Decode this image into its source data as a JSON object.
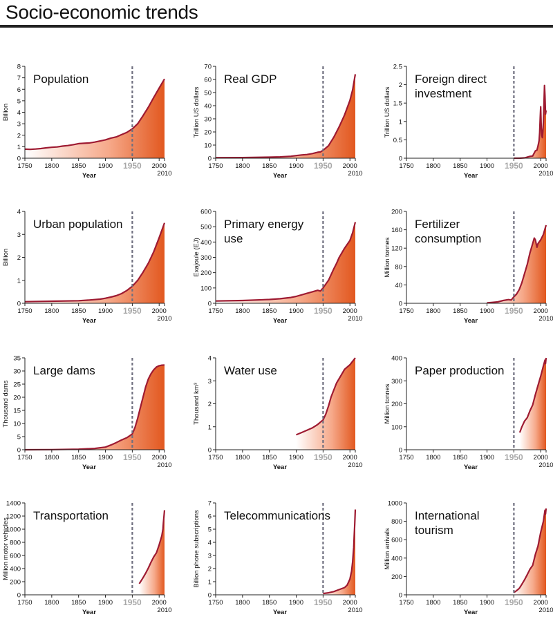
{
  "page": {
    "title": "Socio-economic trends"
  },
  "chart_data": [
    {
      "type": "area",
      "title": "Population",
      "ylabel": "Billion",
      "xlabel": "Year",
      "ylim": [
        0,
        8
      ],
      "yticks": [
        0,
        1,
        2,
        3,
        4,
        5,
        6,
        7,
        8
      ],
      "xticks": [
        "1750",
        "1800",
        "1850",
        "1900",
        "1950",
        "2000"
      ],
      "xlim": [
        1750,
        2010
      ],
      "marker_year_label": "1950",
      "end_year_label": "2010",
      "x": [
        1750,
        1760,
        1770,
        1780,
        1790,
        1800,
        1810,
        1820,
        1830,
        1840,
        1850,
        1860,
        1870,
        1880,
        1890,
        1900,
        1910,
        1920,
        1930,
        1940,
        1950,
        1960,
        1970,
        1980,
        1990,
        2000,
        2010
      ],
      "y": [
        0.79,
        0.77,
        0.8,
        0.84,
        0.9,
        0.95,
        0.98,
        1.05,
        1.1,
        1.18,
        1.27,
        1.3,
        1.33,
        1.4,
        1.5,
        1.6,
        1.75,
        1.85,
        2.05,
        2.25,
        2.55,
        3.0,
        3.7,
        4.45,
        5.3,
        6.1,
        6.9
      ]
    },
    {
      "type": "area",
      "title": "Real GDP",
      "ylabel": "Trillion US dollars",
      "xlabel": "Year",
      "ylim": [
        0,
        70
      ],
      "yticks": [
        0,
        10,
        20,
        30,
        40,
        50,
        60,
        70
      ],
      "xticks": [
        "1750",
        "1800",
        "1850",
        "1900",
        "1950",
        "2000"
      ],
      "xlim": [
        1750,
        2010
      ],
      "marker_year_label": "1950",
      "end_year_label": "2010",
      "x": [
        1750,
        1800,
        1850,
        1870,
        1890,
        1900,
        1910,
        1920,
        1930,
        1940,
        1945,
        1950,
        1960,
        1970,
        1980,
        1990,
        2000,
        2005,
        2010
      ],
      "y": [
        0.4,
        0.5,
        0.8,
        1.0,
        1.5,
        2.0,
        2.5,
        2.8,
        3.5,
        4.5,
        4.8,
        6.0,
        9.5,
        16,
        24,
        33,
        44,
        52,
        64
      ]
    },
    {
      "type": "area",
      "title": "Foreign direct investment",
      "ylabel": "Trillion US dollars",
      "xlabel": "Year",
      "ylim": [
        0,
        2.5
      ],
      "yticks": [
        0,
        0.5,
        1,
        1.5,
        2,
        2.5
      ],
      "xticks": [
        "1750",
        "1800",
        "1850",
        "1900",
        "1950",
        "2000"
      ],
      "xlim": [
        1750,
        2010
      ],
      "marker_year_label": "1950",
      "end_year_label": "2010",
      "x": [
        1950,
        1960,
        1970,
        1980,
        1985,
        1990,
        1993,
        1995,
        1997,
        1998,
        1999,
        2000,
        2001,
        2002,
        2003,
        2004,
        2005,
        2006,
        2007,
        2008,
        2009,
        2010
      ],
      "y": [
        0,
        0,
        0.01,
        0.05,
        0.06,
        0.2,
        0.22,
        0.33,
        0.48,
        0.7,
        1.1,
        1.4,
        0.83,
        0.62,
        0.56,
        0.72,
        0.98,
        1.45,
        1.98,
        1.7,
        1.2,
        1.3
      ]
    },
    {
      "type": "area",
      "title": "Urban population",
      "ylabel": "Billion",
      "xlabel": "Year",
      "ylim": [
        0,
        4
      ],
      "yticks": [
        0,
        1,
        2,
        3,
        4
      ],
      "xticks": [
        "1750",
        "1800",
        "1850",
        "1900",
        "1950",
        "2000"
      ],
      "xlim": [
        1750,
        2010
      ],
      "marker_year_label": "1950",
      "end_year_label": "2010",
      "x": [
        1750,
        1800,
        1850,
        1870,
        1890,
        1900,
        1910,
        1920,
        1930,
        1940,
        1950,
        1960,
        1970,
        1980,
        1990,
        2000,
        2010
      ],
      "y": [
        0.07,
        0.09,
        0.11,
        0.14,
        0.18,
        0.22,
        0.27,
        0.33,
        0.42,
        0.56,
        0.74,
        1.0,
        1.35,
        1.75,
        2.25,
        2.85,
        3.5
      ]
    },
    {
      "type": "area",
      "title": "Primary energy use",
      "ylabel": "Exajoule (EJ)",
      "xlabel": "Year",
      "ylim": [
        0,
        600
      ],
      "yticks": [
        0,
        100,
        200,
        300,
        400,
        500,
        600
      ],
      "xticks": [
        "1750",
        "1800",
        "1850",
        "1900",
        "1950",
        "2000"
      ],
      "xlim": [
        1750,
        2010
      ],
      "marker_year_label": "1950",
      "end_year_label": "2010",
      "x": [
        1750,
        1800,
        1850,
        1870,
        1890,
        1900,
        1910,
        1920,
        1930,
        1940,
        1945,
        1950,
        1960,
        1970,
        1975,
        1980,
        1985,
        1990,
        2000,
        2005,
        2010
      ],
      "y": [
        15,
        18,
        25,
        30,
        38,
        45,
        55,
        65,
        75,
        85,
        80,
        100,
        150,
        225,
        260,
        300,
        330,
        360,
        410,
        460,
        530
      ]
    },
    {
      "type": "area",
      "title": "Fertilizer consumption",
      "ylabel": "Million tonnes",
      "xlabel": "Year",
      "ylim": [
        0,
        200
      ],
      "yticks": [
        0,
        40,
        80,
        120,
        160,
        200
      ],
      "xticks": [
        "1750",
        "1800",
        "1850",
        "1900",
        "1950",
        "2000"
      ],
      "xlim": [
        1750,
        2010
      ],
      "marker_year_label": "1950",
      "end_year_label": "2010",
      "x": [
        1900,
        1910,
        1920,
        1930,
        1940,
        1945,
        1950,
        1955,
        1960,
        1965,
        1970,
        1975,
        1980,
        1985,
        1988,
        1990,
        1993,
        1995,
        2000,
        2005,
        2010
      ],
      "y": [
        1,
        2,
        3,
        6,
        8,
        7,
        14,
        20,
        30,
        45,
        65,
        85,
        110,
        130,
        142,
        138,
        122,
        130,
        138,
        150,
        170
      ]
    },
    {
      "type": "area",
      "title": "Large dams",
      "ylabel": "Thousand dams",
      "xlabel": "Year",
      "ylim": [
        0,
        35
      ],
      "yticks": [
        0,
        5,
        10,
        15,
        20,
        25,
        30,
        35
      ],
      "xticks": [
        "1750",
        "1800",
        "1850",
        "1900",
        "1950",
        "2000"
      ],
      "xlim": [
        1750,
        2010
      ],
      "marker_year_label": "1950",
      "end_year_label": "2010",
      "x": [
        1750,
        1800,
        1850,
        1880,
        1900,
        1910,
        1920,
        1930,
        1940,
        1950,
        1955,
        1960,
        1965,
        1970,
        1975,
        1980,
        1985,
        1990,
        1995,
        2000,
        2005,
        2010
      ],
      "y": [
        0,
        0.05,
        0.2,
        0.5,
        1.0,
        1.8,
        2.7,
        3.7,
        4.6,
        6.0,
        8.5,
        12,
        16,
        20,
        24,
        27,
        29,
        30.5,
        31.5,
        32,
        32.2,
        32.3
      ]
    },
    {
      "type": "area",
      "title": "Water use",
      "ylabel": "Thousand km³",
      "xlabel": "Year",
      "ylim": [
        0,
        4
      ],
      "yticks": [
        0,
        1,
        2,
        3,
        4
      ],
      "xticks": [
        "1750",
        "1800",
        "1850",
        "1900",
        "1950",
        "2000"
      ],
      "xlim": [
        1750,
        2010
      ],
      "marker_year_label": "1950",
      "end_year_label": "2010",
      "x": [
        1900,
        1910,
        1920,
        1930,
        1940,
        1950,
        1955,
        1960,
        1965,
        1970,
        1975,
        1980,
        1985,
        1990,
        1995,
        2000,
        2005,
        2010
      ],
      "y": [
        0.65,
        0.75,
        0.85,
        0.95,
        1.1,
        1.3,
        1.55,
        1.9,
        2.3,
        2.6,
        2.9,
        3.1,
        3.3,
        3.5,
        3.6,
        3.7,
        3.85,
        4.0
      ]
    },
    {
      "type": "area",
      "title": "Paper production",
      "ylabel": "Million tonnes",
      "xlabel": "Year",
      "ylim": [
        0,
        400
      ],
      "yticks": [
        0,
        100,
        200,
        300,
        400
      ],
      "xticks": [
        "1750",
        "1800",
        "1850",
        "1900",
        "1950",
        "2000"
      ],
      "xlim": [
        1750,
        2010
      ],
      "marker_year_label": "1950",
      "end_year_label": "2010",
      "x": [
        1961,
        1965,
        1970,
        1975,
        1980,
        1985,
        1990,
        1995,
        2000,
        2005,
        2008,
        2009,
        2010
      ],
      "y": [
        75,
        100,
        125,
        140,
        170,
        195,
        240,
        280,
        320,
        365,
        390,
        375,
        400
      ]
    },
    {
      "type": "area",
      "title": "Transportation",
      "ylabel": "Million motor vehicles",
      "xlabel": "Year",
      "ylim": [
        0,
        1400
      ],
      "yticks": [
        0,
        200,
        400,
        600,
        800,
        1000,
        1200,
        1400
      ],
      "xticks": [
        "1750",
        "1800",
        "1850",
        "1900",
        "1950",
        "2000"
      ],
      "xlim": [
        1750,
        2010
      ],
      "marker_year_label": "1950",
      "end_year_label": "2010",
      "x": [
        1963,
        1970,
        1975,
        1980,
        1985,
        1990,
        1995,
        2000,
        2005,
        2007,
        2008,
        2010
      ],
      "y": [
        170,
        260,
        330,
        410,
        500,
        580,
        640,
        760,
        900,
        1000,
        1100,
        1290
      ]
    },
    {
      "type": "area",
      "title": "Telecommunications",
      "ylabel": "Billion phone subscriptions",
      "xlabel": "Year",
      "ylim": [
        0,
        7
      ],
      "yticks": [
        0,
        1,
        2,
        3,
        4,
        5,
        6,
        7
      ],
      "xticks": [
        "1750",
        "1800",
        "1850",
        "1900",
        "1950",
        "2000"
      ],
      "xlim": [
        1750,
        2010
      ],
      "marker_year_label": "1950",
      "end_year_label": "2010",
      "x": [
        1950,
        1960,
        1970,
        1980,
        1990,
        1995,
        2000,
        2003,
        2005,
        2007,
        2008,
        2009,
        2010
      ],
      "y": [
        0.1,
        0.15,
        0.25,
        0.4,
        0.55,
        0.75,
        1.2,
        1.8,
        2.5,
        3.6,
        4.5,
        5.4,
        6.5
      ]
    },
    {
      "type": "area",
      "title": "International tourism",
      "ylabel": "Million arrivals",
      "xlabel": "Year",
      "ylim": [
        0,
        1000
      ],
      "yticks": [
        0,
        200,
        400,
        600,
        800,
        1000
      ],
      "xticks": [
        "1750",
        "1800",
        "1850",
        "1900",
        "1950",
        "2000"
      ],
      "xlim": [
        1750,
        2010
      ],
      "marker_year_label": "1950",
      "end_year_label": "2010",
      "x": [
        1950,
        1955,
        1960,
        1965,
        1970,
        1975,
        1980,
        1985,
        1990,
        1995,
        2000,
        2005,
        2008,
        2009,
        2010
      ],
      "y": [
        25,
        45,
        70,
        115,
        165,
        220,
        280,
        320,
        440,
        530,
        680,
        800,
        920,
        880,
        940
      ]
    }
  ],
  "colors": {
    "line": "#9e1b32",
    "fill_light": "#ffffff",
    "fill_mid": "#f6a98a",
    "fill_dark": "#e2581f",
    "dashed_marker": "#6f6f7f",
    "marker_label": "#a8a8a8",
    "axis": "#222222",
    "title_rule": "#222222"
  }
}
